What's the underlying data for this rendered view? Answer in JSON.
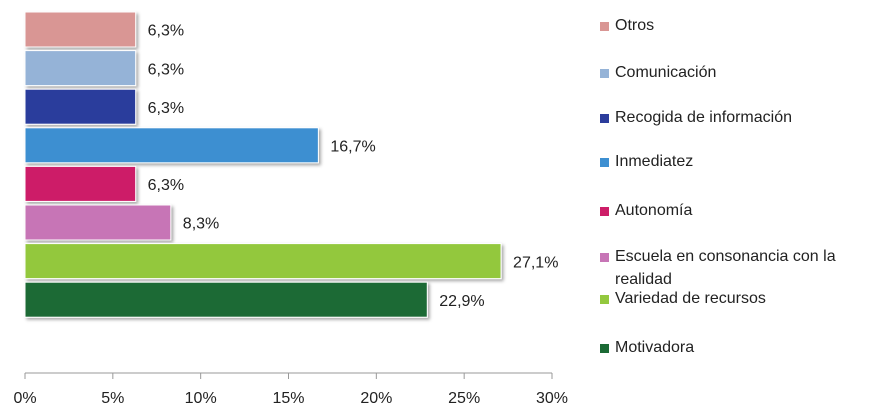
{
  "chart_data": {
    "type": "bar",
    "orientation": "horizontal",
    "categories": [
      "Otros",
      "Comunicación",
      "Recogida de información",
      "Inmediatez",
      "Autonomía",
      "Escuela en consonancia con la realidad",
      "Variedad de recursos",
      "Motivadora"
    ],
    "values": [
      6.3,
      6.3,
      6.3,
      16.7,
      6.3,
      8.3,
      27.1,
      22.9
    ],
    "value_labels": [
      "6,3%",
      "6,3%",
      "6,3%",
      "16,7%",
      "6,3%",
      "8,3%",
      "27,1%",
      "22,9%"
    ],
    "colors": [
      "#d99694",
      "#95b3d7",
      "#2c3d9c",
      "#3d8fd1",
      "#cd1e68",
      "#c775b6",
      "#93c83e",
      "#1b6a35"
    ],
    "xlim": [
      0,
      30
    ],
    "xticks": [
      {
        "value": 0,
        "label": "0%"
      },
      {
        "value": 5,
        "label": "5%"
      },
      {
        "value": 10,
        "label": "10%"
      },
      {
        "value": 15,
        "label": "15%"
      },
      {
        "value": 20,
        "label": "20%"
      },
      {
        "value": 25,
        "label": "25%"
      },
      {
        "value": 30,
        "label": "30%"
      }
    ],
    "legend": "right"
  }
}
